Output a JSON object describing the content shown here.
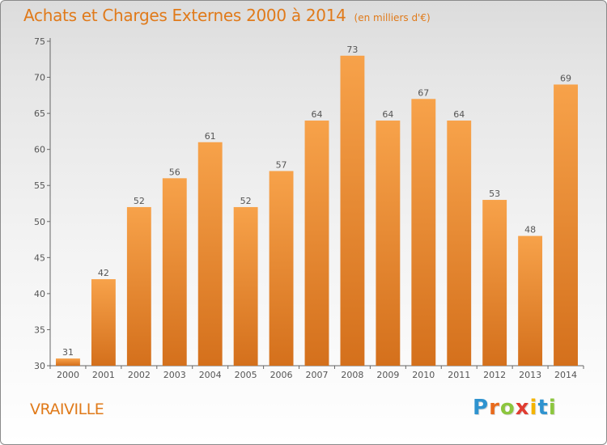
{
  "chart_data": {
    "type": "bar",
    "title": "Achats et Charges Externes 2000 à 2014",
    "subtitle": "(en milliers d'€)",
    "categories": [
      "2000",
      "2001",
      "2002",
      "2003",
      "2004",
      "2005",
      "2006",
      "2007",
      "2008",
      "2009",
      "2010",
      "2011",
      "2012",
      "2013",
      "2014"
    ],
    "values": [
      31,
      42,
      52,
      56,
      61,
      52,
      57,
      64,
      73,
      64,
      67,
      64,
      53,
      48,
      69
    ],
    "ylim": [
      30,
      75
    ],
    "yticks": [
      30,
      35,
      40,
      45,
      50,
      55,
      60,
      65,
      70,
      75
    ],
    "grid": false,
    "legend": "none",
    "bar_color_top": "#f7a24a",
    "bar_color_bottom": "#d4701c"
  },
  "footer": {
    "place": "VRAIVILLE",
    "logo_letters": [
      "P",
      "r",
      "o",
      "x",
      "i",
      "t",
      "i"
    ],
    "logo_colors": [
      "#2f93cf",
      "#e86a1c",
      "#8cc63e",
      "#e03c31",
      "#f4b400",
      "#2f93cf",
      "#8cc63e"
    ]
  }
}
